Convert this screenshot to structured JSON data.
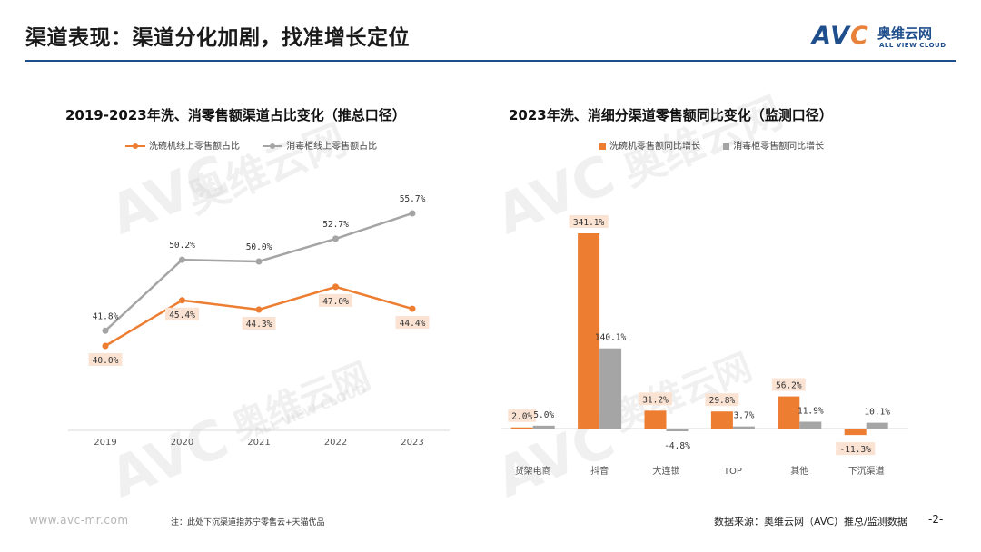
{
  "slide": {
    "title": "渠道表现：渠道分化加剧，找准增长定位",
    "page_number": "-2-"
  },
  "logo": {
    "mark_text": "AV",
    "mark_c": "C",
    "cn": "奥维云网",
    "en": "ALL VIEW CLOUD"
  },
  "watermarks": [
    "AVC",
    "奥维云网",
    "ALL VIEW CLOUD"
  ],
  "footer": {
    "url": "www.avc-mr.com",
    "note": "注：此处下沉渠道指苏宁零售云+天猫优品",
    "source": "数据来源：奥维云网（AVC）推总/监测数据"
  },
  "colors": {
    "orange": "#ED7D31",
    "gray": "#A5A5A5",
    "brand": "#1F4E8C",
    "label_bg": "#FBE3D3"
  },
  "chart_data": [
    {
      "type": "line",
      "title": "2019-2023年洗、消零售额渠道占比变化（推总口径）",
      "x": [
        "2019",
        "2020",
        "2021",
        "2022",
        "2023"
      ],
      "series": [
        {
          "name": "洗碗机线上零售额占比",
          "values": [
            40.0,
            45.4,
            44.3,
            47.0,
            44.4
          ],
          "labels": [
            "40.0%",
            "45.4%",
            "44.3%",
            "47.0%",
            "44.4%"
          ],
          "color": "#ED7D31"
        },
        {
          "name": "消毒柜线上零售额占比",
          "values": [
            41.8,
            50.2,
            50.0,
            52.7,
            55.7
          ],
          "labels": [
            "41.8%",
            "50.2%",
            "50.0%",
            "52.7%",
            "55.7%"
          ],
          "color": "#A5A5A5"
        }
      ],
      "ylim": [
        30,
        60
      ],
      "grid": false,
      "legend": "top"
    },
    {
      "type": "bar",
      "title": "2023年洗、消细分渠道零售额同比变化（监测口径）",
      "categories": [
        "货架电商",
        "抖音",
        "大连锁",
        "TOP",
        "其他",
        "下沉渠道"
      ],
      "series": [
        {
          "name": "洗碗机零售额同比增长",
          "values": [
            2.0,
            341.1,
            31.2,
            29.8,
            56.2,
            -11.3
          ],
          "labels": [
            "2.0%",
            "341.1%",
            "31.2%",
            "29.8%",
            "56.2%",
            "-11.3%"
          ],
          "color": "#ED7D31"
        },
        {
          "name": "消毒柜零售额同比增长",
          "values": [
            5.0,
            140.1,
            -4.8,
            3.7,
            11.9,
            10.1
          ],
          "labels": [
            "5.0%",
            "140.1%",
            "-4.8%",
            "3.7%",
            "11.9%",
            "10.1%"
          ],
          "color": "#A5A5A5"
        }
      ],
      "ylim": [
        -20,
        350
      ],
      "grid": false,
      "legend": "top"
    }
  ]
}
